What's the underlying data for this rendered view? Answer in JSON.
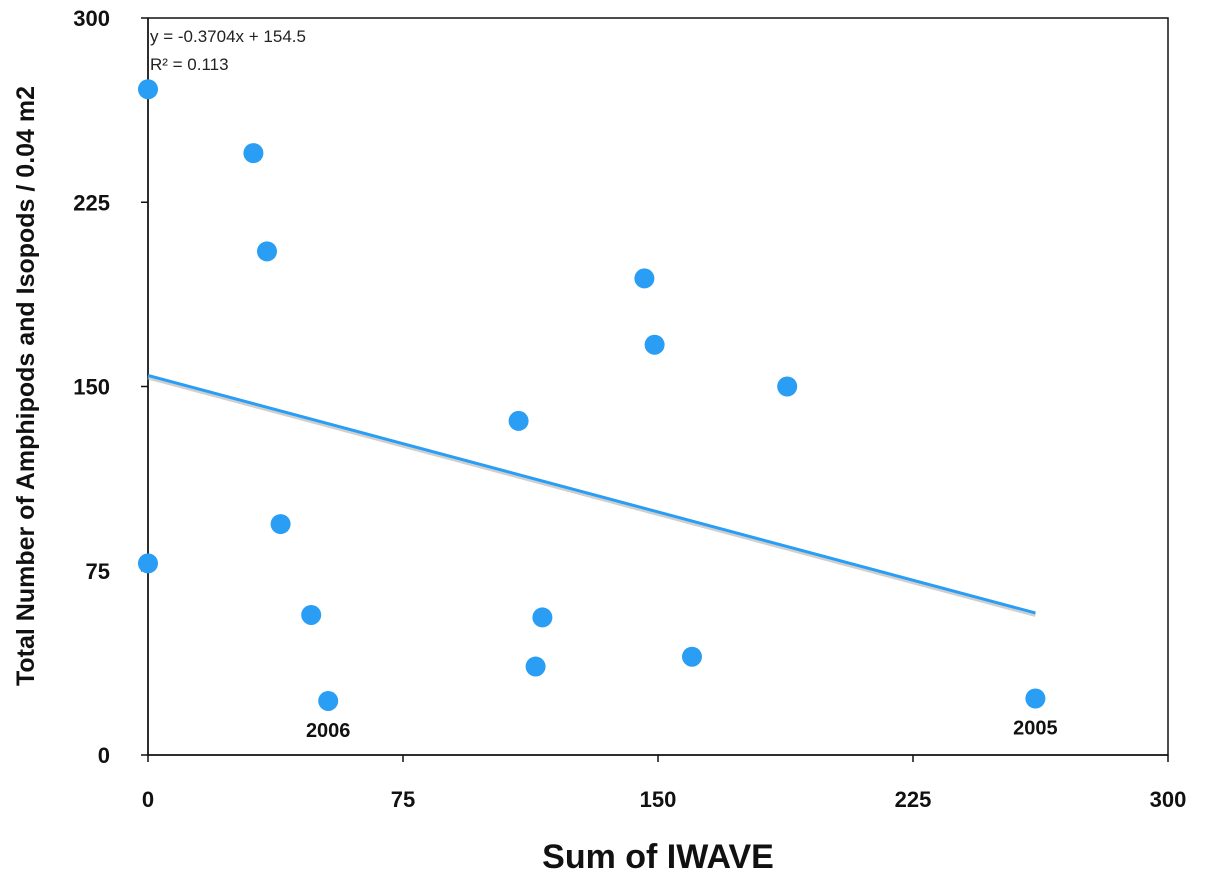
{
  "chart_data": {
    "type": "scatter",
    "title": "",
    "xlabel": "Sum of IWAVE",
    "ylabel": "Total Number of Amphipods and Isopods / 0.04 m2",
    "xlim": [
      0,
      300
    ],
    "ylim": [
      0,
      300
    ],
    "xticks": [
      0,
      75,
      150,
      225,
      300
    ],
    "yticks": [
      0,
      75,
      150,
      225,
      300
    ],
    "grid": false,
    "legend": "none",
    "marker_color": "#2a9df4",
    "trendline_color": "#2a9df4",
    "series": [
      {
        "points": [
          {
            "x": 0,
            "y": 271,
            "label": ""
          },
          {
            "x": 31,
            "y": 245,
            "label": ""
          },
          {
            "x": 35,
            "y": 205,
            "label": ""
          },
          {
            "x": 146,
            "y": 194,
            "label": ""
          },
          {
            "x": 149,
            "y": 167,
            "label": ""
          },
          {
            "x": 188,
            "y": 150,
            "label": ""
          },
          {
            "x": 109,
            "y": 136,
            "label": ""
          },
          {
            "x": 39,
            "y": 94,
            "label": ""
          },
          {
            "x": 0,
            "y": 78,
            "label": ""
          },
          {
            "x": 48,
            "y": 57,
            "label": ""
          },
          {
            "x": 116,
            "y": 56,
            "label": ""
          },
          {
            "x": 160,
            "y": 40,
            "label": ""
          },
          {
            "x": 114,
            "y": 36,
            "label": ""
          },
          {
            "x": 53,
            "y": 22,
            "label": "2006"
          },
          {
            "x": 261,
            "y": 23,
            "label": "2005"
          }
        ]
      }
    ],
    "trendline": {
      "slope": -0.3704,
      "intercept": 154.5,
      "x_start": 0,
      "x_end": 261,
      "equation": "y = -0.3704x + 154.5",
      "r_squared": "R² = 0.113"
    }
  }
}
